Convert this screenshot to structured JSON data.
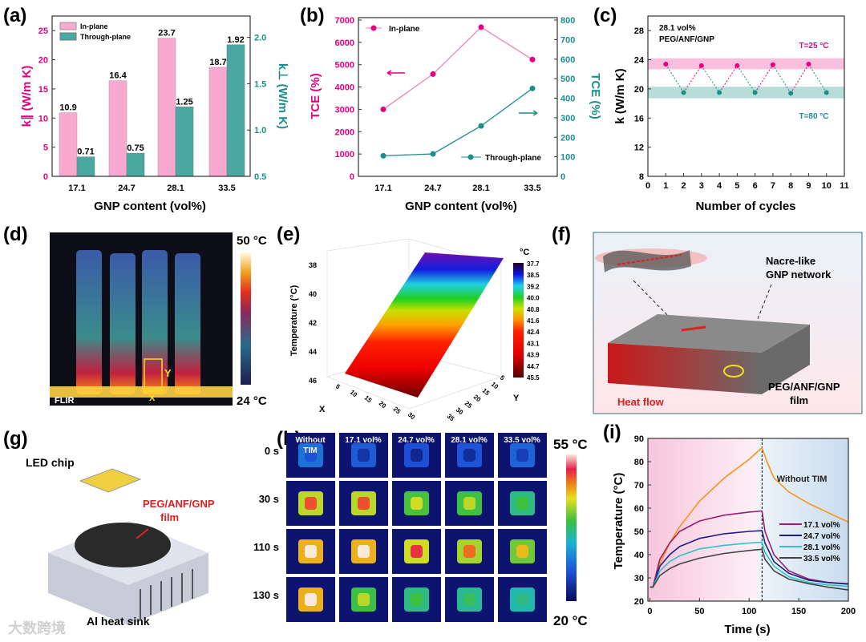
{
  "panel_labels": {
    "a": "(a)",
    "b": "(b)",
    "c": "(c)",
    "d": "(d)",
    "e": "(e)",
    "f": "(f)",
    "g": "(g)",
    "h": "(h)",
    "i": "(i)"
  },
  "colors": {
    "pink": "#e4007f",
    "pink_light": "#f9a8d0",
    "teal": "#1a8f8a",
    "teal_bar": "#4aa8a2",
    "orange": "#f7941d",
    "c17": "#9c1d6a",
    "c24": "#1c1c8f",
    "c28": "#2cc4c4",
    "c33": "#444444"
  },
  "chart_data": [
    {
      "id": "a",
      "type": "bar",
      "categories": [
        "17.1",
        "24.7",
        "28.1",
        "33.5"
      ],
      "xlabel": "GNP content (vol%)",
      "ylabel": "k∥ (W/m K)",
      "ylabel_right": "k⊥ (W/m K)",
      "ylim": [
        0,
        27.5
      ],
      "ylim_right": [
        0.5,
        2.23
      ],
      "yticks": [
        0,
        5,
        10,
        15,
        20,
        25
      ],
      "yticks_right": [
        "0.5",
        "1.0",
        "1.5",
        "2.0"
      ],
      "series": [
        {
          "name": "In-plane",
          "axis": "left",
          "values": [
            10.9,
            16.4,
            23.7,
            18.7
          ],
          "labels": [
            "10.9",
            "16.4",
            "23.7",
            "18.7"
          ]
        },
        {
          "name": "Through-plane",
          "axis": "right",
          "values": [
            0.71,
            0.75,
            1.25,
            1.92
          ],
          "labels": [
            "0.71",
            "0.75",
            "1.25",
            "1.92"
          ]
        }
      ],
      "legend": "top-left"
    },
    {
      "id": "b",
      "type": "line",
      "categories": [
        "17.1",
        "24.7",
        "28.1",
        "33.5"
      ],
      "xlabel": "GNP content (vol%)",
      "ylabel": "TCE (%)",
      "ylabel_right": "TCE (%)",
      "ylim": [
        0,
        7000
      ],
      "ylim_right": [
        0,
        800
      ],
      "yticks": [
        0,
        1000,
        2000,
        3000,
        4000,
        5000,
        6000,
        7000
      ],
      "yticks_right": [
        0,
        100,
        200,
        300,
        400,
        500,
        600,
        700,
        800
      ],
      "series": [
        {
          "name": "In-plane",
          "axis": "left",
          "values": [
            3000,
            4580,
            6680,
            5230
          ]
        },
        {
          "name": "Through-plane",
          "axis": "right",
          "values": [
            105,
            115,
            258,
            450
          ]
        }
      ]
    },
    {
      "id": "c",
      "type": "line",
      "title": "28.1 vol%",
      "subtitle": "PEG/ANF/GNP",
      "xlabel": "Number of cycles",
      "ylabel": "k (W/m K)",
      "xlim": [
        0,
        11
      ],
      "ylim": [
        8,
        30
      ],
      "xticks": [
        0,
        1,
        2,
        3,
        4,
        5,
        6,
        7,
        8,
        9,
        10,
        11
      ],
      "yticks": [
        8,
        12,
        16,
        20,
        24,
        28
      ],
      "x": [
        1,
        2,
        3,
        4,
        5,
        6,
        7,
        8,
        9,
        10
      ],
      "values": [
        23.4,
        19.5,
        23.2,
        19.5,
        23.2,
        19.5,
        23.3,
        19.4,
        23.4,
        19.5
      ],
      "bands": [
        {
          "label": "T=25 °C",
          "range": [
            22.7,
            24.2
          ]
        },
        {
          "label": "T=80 °C",
          "range": [
            18.7,
            20.3
          ]
        }
      ]
    },
    {
      "id": "i",
      "type": "line",
      "xlabel": "Time (s)",
      "ylabel": "Temperature (°C)",
      "xlim": [
        -2,
        200
      ],
      "ylim": [
        20,
        90
      ],
      "xticks": [
        0,
        50,
        100,
        150,
        200
      ],
      "yticks": [
        20,
        30,
        40,
        50,
        60,
        70,
        80,
        90
      ],
      "switch_time": 113,
      "annotation": "Without TIM",
      "series": [
        {
          "name": "Without TIM",
          "color_key": "orange",
          "points": [
            [
              0,
              26
            ],
            [
              3,
              26
            ],
            [
              10,
              36
            ],
            [
              20,
              45
            ],
            [
              30,
              52
            ],
            [
              50,
              63
            ],
            [
              75,
              73
            ],
            [
              100,
              81
            ],
            [
              113,
              86
            ],
            [
              118,
              80
            ],
            [
              125,
              73
            ],
            [
              140,
              67
            ],
            [
              160,
              62
            ],
            [
              180,
              58
            ],
            [
              200,
              54
            ]
          ]
        },
        {
          "name": "17.1 vol%",
          "color_key": "c17",
          "points": [
            [
              0,
              26
            ],
            [
              3,
              26
            ],
            [
              10,
              38
            ],
            [
              20,
              45
            ],
            [
              30,
              50
            ],
            [
              50,
              54.5
            ],
            [
              75,
              57
            ],
            [
              100,
              58.3
            ],
            [
              113,
              58.8
            ],
            [
              116,
              50
            ],
            [
              125,
              40
            ],
            [
              140,
              33
            ],
            [
              160,
              29.5
            ],
            [
              180,
              28
            ],
            [
              200,
              27.5
            ]
          ]
        },
        {
          "name": "24.7 vol%",
          "color_key": "c24",
          "points": [
            [
              0,
              26
            ],
            [
              3,
              26
            ],
            [
              10,
              35
            ],
            [
              20,
              40
            ],
            [
              30,
              43.5
            ],
            [
              50,
              47
            ],
            [
              75,
              49
            ],
            [
              100,
              50
            ],
            [
              113,
              50.3
            ],
            [
              116,
              45
            ],
            [
              125,
              37
            ],
            [
              140,
              32
            ],
            [
              160,
              29
            ],
            [
              180,
              28
            ],
            [
              200,
              27.3
            ]
          ]
        },
        {
          "name": "28.1 vol%",
          "color_key": "c28",
          "points": [
            [
              0,
              26
            ],
            [
              3,
              26
            ],
            [
              10,
              33
            ],
            [
              20,
              37
            ],
            [
              30,
              39.5
            ],
            [
              50,
              42.5
            ],
            [
              75,
              44
            ],
            [
              100,
              45
            ],
            [
              113,
              45.3
            ],
            [
              116,
              41
            ],
            [
              125,
              35
            ],
            [
              140,
              30.5
            ],
            [
              160,
              28
            ],
            [
              180,
              27
            ],
            [
              200,
              26.3
            ]
          ]
        },
        {
          "name": "33.5 vol%",
          "color_key": "c33",
          "points": [
            [
              0,
              26
            ],
            [
              3,
              26
            ],
            [
              10,
              31
            ],
            [
              20,
              34
            ],
            [
              30,
              36
            ],
            [
              50,
              38.5
            ],
            [
              75,
              40.5
            ],
            [
              100,
              41.8
            ],
            [
              113,
              42.3
            ],
            [
              116,
              38
            ],
            [
              125,
              33
            ],
            [
              140,
              29.5
            ],
            [
              160,
              27.5
            ],
            [
              180,
              26
            ],
            [
              200,
              24.8
            ]
          ]
        }
      ]
    },
    {
      "id": "e",
      "type": "heatmap",
      "zlabel": "Temperature (°C)",
      "xlabel": "X",
      "ylabel": "Y",
      "unit": "°C",
      "zticks": [
        "38",
        "40",
        "42",
        "44",
        "46"
      ],
      "xticks": [
        "5",
        "10",
        "15",
        "20",
        "25",
        "30"
      ],
      "yticks": [
        "5",
        "10",
        "15",
        "20",
        "25",
        "30",
        "35"
      ],
      "colorbar_ticks": [
        "37.7",
        "38.5",
        "39.2",
        "40.0",
        "40.8",
        "41.6",
        "42.4",
        "43.1",
        "43.9",
        "44.7",
        "45.5"
      ]
    }
  ],
  "panel_d": {
    "max_label": "50 °C",
    "min_label": "24 °C",
    "x_marker": "X",
    "y_marker": "Y",
    "logo": "FLIR"
  },
  "panel_f": {
    "network_label_1": "Nacre-like",
    "network_label_2": "GNP network",
    "film_label_1": "PEG/ANF/GNP",
    "film_label_2": "film",
    "heat_label": "Heat flow"
  },
  "panel_g": {
    "led_label": "LED chip",
    "film_label_1": "PEG/ANF/GNP",
    "film_label_2": "film",
    "sink_label": "Al heat sink"
  },
  "panel_h": {
    "columns": [
      "Without TIM",
      "17.1 vol%",
      "24.7 vol%",
      "28.1 vol%",
      "33.5 vol%"
    ],
    "rows": [
      "0 s",
      "30 s",
      "110 s",
      "130 s"
    ],
    "max_label": "55 °C",
    "min_label": "20 °C",
    "tile_levels": [
      [
        0.2,
        0.12,
        0.08,
        0.1,
        0.15
      ],
      [
        0.85,
        0.85,
        0.68,
        0.66,
        0.55
      ],
      [
        1,
        1,
        0.88,
        0.82,
        0.74
      ],
      [
        1,
        0.66,
        0.55,
        0.52,
        0.48
      ]
    ]
  },
  "watermark": "大数跨境"
}
